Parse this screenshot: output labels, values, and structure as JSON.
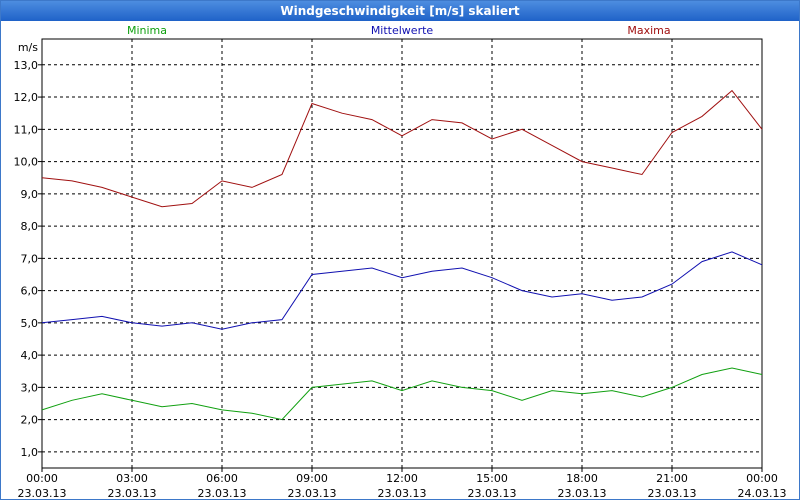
{
  "window": {
    "title": "Windgeschwindigkeit [m/s] skaliert"
  },
  "chart_data": {
    "type": "line",
    "title": "Windgeschwindigkeit [m/s] skaliert",
    "ylabel": "m/s",
    "xlabel": "",
    "ylim": [
      0.5,
      13.8
    ],
    "y_ticks": [
      "1,0",
      "2,0",
      "3,0",
      "4,0",
      "5,0",
      "6,0",
      "7,0",
      "8,0",
      "9,0",
      "10,0",
      "11,0",
      "12,0",
      "13,0"
    ],
    "x_ticks": [
      {
        "time": "00:00",
        "date": "23.03.13"
      },
      {
        "time": "03:00",
        "date": "23.03.13"
      },
      {
        "time": "06:00",
        "date": "23.03.13"
      },
      {
        "time": "09:00",
        "date": "23.03.13"
      },
      {
        "time": "12:00",
        "date": "23.03.13"
      },
      {
        "time": "15:00",
        "date": "23.03.13"
      },
      {
        "time": "18:00",
        "date": "23.03.13"
      },
      {
        "time": "21:00",
        "date": "23.03.13"
      },
      {
        "time": "00:00",
        "date": "24.03.13"
      }
    ],
    "x_range_hours": [
      0,
      24
    ],
    "grid": true,
    "series": [
      {
        "name": "Minima",
        "color": "#10a010",
        "hours": [
          0,
          1,
          2,
          3,
          4,
          5,
          6,
          7,
          8,
          9,
          10,
          11,
          12,
          13,
          14,
          15,
          16,
          17,
          18,
          19,
          20,
          21,
          22,
          23,
          24
        ],
        "values": [
          2.3,
          2.6,
          2.8,
          2.6,
          2.4,
          2.5,
          2.3,
          2.2,
          2.0,
          3.0,
          3.1,
          3.2,
          2.9,
          3.2,
          3.0,
          2.9,
          2.6,
          2.9,
          2.8,
          2.9,
          2.7,
          3.0,
          3.4,
          3.6,
          3.4
        ]
      },
      {
        "name": "Mittelwerte",
        "color": "#1010b0",
        "hours": [
          0,
          1,
          2,
          3,
          4,
          5,
          6,
          7,
          8,
          9,
          10,
          11,
          12,
          13,
          14,
          15,
          16,
          17,
          18,
          19,
          20,
          21,
          22,
          23,
          24
        ],
        "values": [
          5.0,
          5.1,
          5.2,
          5.0,
          4.9,
          5.0,
          4.8,
          5.0,
          5.1,
          6.5,
          6.6,
          6.7,
          6.4,
          6.6,
          6.7,
          6.4,
          6.0,
          5.8,
          5.9,
          5.7,
          5.8,
          6.2,
          6.9,
          7.2,
          6.8
        ]
      },
      {
        "name": "Maxima",
        "color": "#a01010",
        "hours": [
          0,
          1,
          2,
          3,
          4,
          5,
          6,
          7,
          8,
          9,
          10,
          11,
          12,
          13,
          14,
          15,
          16,
          17,
          18,
          19,
          20,
          21,
          22,
          23,
          24
        ],
        "values": [
          9.5,
          9.4,
          9.2,
          8.9,
          8.6,
          8.7,
          9.4,
          9.2,
          9.6,
          11.8,
          11.5,
          11.3,
          10.8,
          11.3,
          11.2,
          10.7,
          11.0,
          10.5,
          10.0,
          9.8,
          9.6,
          10.9,
          11.4,
          12.2,
          11.0
        ]
      }
    ]
  }
}
